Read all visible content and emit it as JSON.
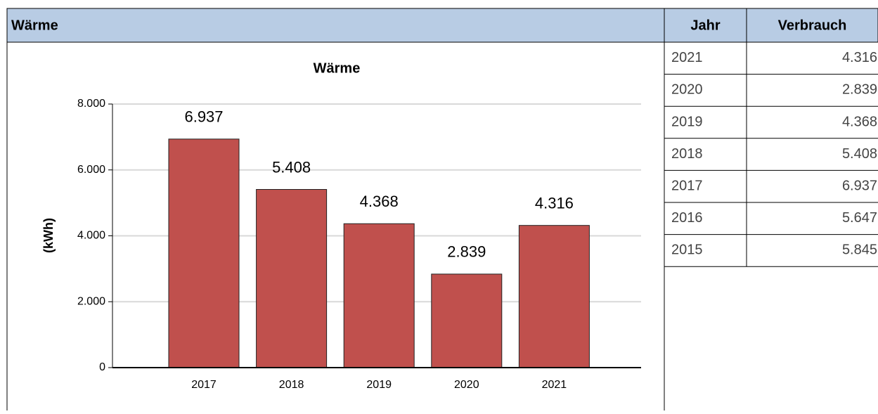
{
  "header": {
    "title": "Wärme"
  },
  "table": {
    "columns": [
      "Jahr",
      "Verbrauch"
    ],
    "rows": [
      [
        "2021",
        "4.316"
      ],
      [
        "2020",
        "2.839"
      ],
      [
        "2019",
        "4.368"
      ],
      [
        "2018",
        "5.408"
      ],
      [
        "2017",
        "6.937"
      ],
      [
        "2016",
        "5.647"
      ],
      [
        "2015",
        "5.845"
      ]
    ]
  },
  "chart_data": {
    "type": "bar",
    "title": "Wärme",
    "ylabel": "(kWh)",
    "categories": [
      "2017",
      "2018",
      "2019",
      "2020",
      "2021"
    ],
    "values": [
      6937,
      5408,
      4368,
      2839,
      4316
    ],
    "value_labels": [
      "6.937",
      "5.408",
      "4.368",
      "2.839",
      "4.316"
    ],
    "color": "#c0504d",
    "ylim": [
      0,
      8000
    ],
    "yticks": [
      0,
      {
        "value": 2000,
        "label": "2.000"
      },
      {
        "value": 4000,
        "label": "4.000"
      },
      {
        "value": 6000,
        "label": "6.000"
      },
      {
        "value": 8000,
        "label": "8.000"
      }
    ],
    "grid": true
  }
}
